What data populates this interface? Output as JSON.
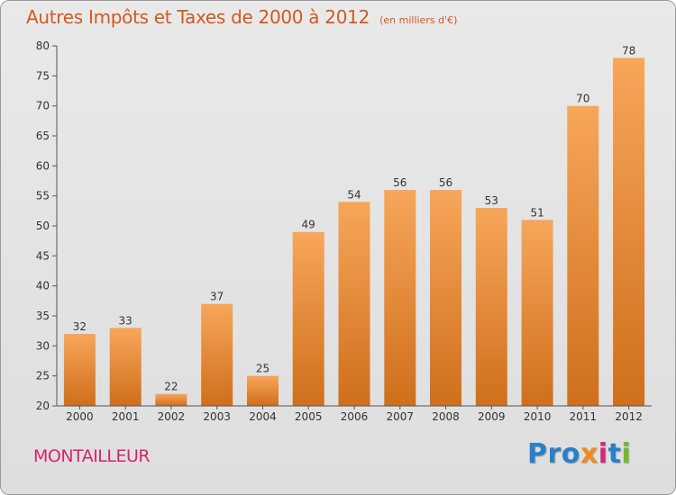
{
  "chart_data": {
    "type": "bar",
    "title": "Autres Impôts et Taxes de 2000 à 2012",
    "unit": "(en milliers d'€)",
    "categories": [
      "2000",
      "2001",
      "2002",
      "2003",
      "2004",
      "2005",
      "2006",
      "2007",
      "2008",
      "2009",
      "2010",
      "2011",
      "2012"
    ],
    "values": [
      32,
      33,
      22,
      37,
      25,
      49,
      54,
      56,
      56,
      53,
      51,
      70,
      78
    ],
    "ylim": [
      20,
      80
    ],
    "yticks": [
      20,
      25,
      30,
      35,
      40,
      45,
      50,
      55,
      60,
      65,
      70,
      75,
      80
    ],
    "grid": false,
    "bar_color": "#f08a2c",
    "bar_color_light": "#f7a65a",
    "bar_color_dark": "#cf6f1b"
  },
  "footer": {
    "commune": "MONTAILLEUR",
    "logo": [
      "Pro",
      "x",
      "i",
      "t",
      "i"
    ]
  },
  "colors": {
    "title": "#d05a1e",
    "commune": "#d6256a"
  }
}
